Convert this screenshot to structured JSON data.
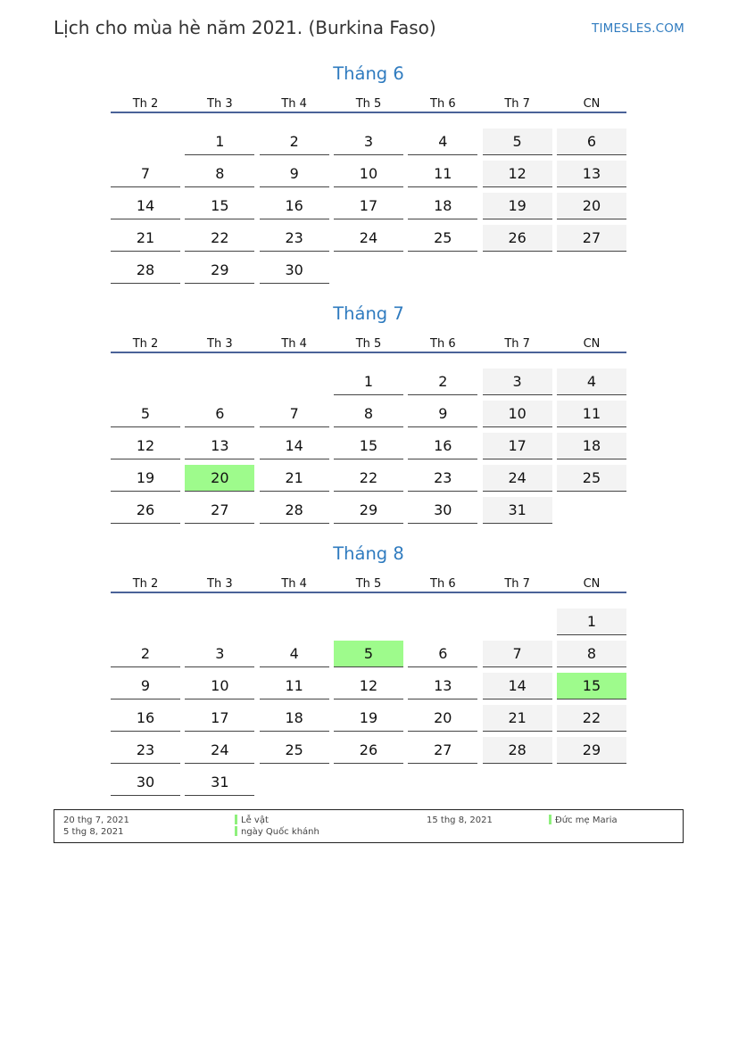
{
  "header": {
    "title": "Lịch cho mùa hè năm 2021. (Burkina Faso)",
    "brand": "TIMESLES.COM"
  },
  "weekdays": [
    "Th 2",
    "Th 3",
    "Th 4",
    "Th 5",
    "Th 6",
    "Th 7",
    "CN"
  ],
  "colors": {
    "accent": "#2f7bbf",
    "weekend": "#f3f3f3",
    "holiday": "#9efb8c",
    "rule": "#4a6298"
  },
  "months": [
    {
      "title": "Tháng 6",
      "weeks": [
        [
          null,
          1,
          2,
          3,
          4,
          5,
          6
        ],
        [
          7,
          8,
          9,
          10,
          11,
          12,
          13
        ],
        [
          14,
          15,
          16,
          17,
          18,
          19,
          20
        ],
        [
          21,
          22,
          23,
          24,
          25,
          26,
          27
        ],
        [
          28,
          29,
          30,
          null,
          null,
          null,
          null
        ]
      ],
      "holidays": []
    },
    {
      "title": "Tháng 7",
      "weeks": [
        [
          null,
          null,
          null,
          1,
          2,
          3,
          4
        ],
        [
          5,
          6,
          7,
          8,
          9,
          10,
          11
        ],
        [
          12,
          13,
          14,
          15,
          16,
          17,
          18
        ],
        [
          19,
          20,
          21,
          22,
          23,
          24,
          25
        ],
        [
          26,
          27,
          28,
          29,
          30,
          31,
          null
        ]
      ],
      "holidays": [
        20
      ]
    },
    {
      "title": "Tháng 8",
      "weeks": [
        [
          null,
          null,
          null,
          null,
          null,
          null,
          1
        ],
        [
          2,
          3,
          4,
          5,
          6,
          7,
          8
        ],
        [
          9,
          10,
          11,
          12,
          13,
          14,
          15
        ],
        [
          16,
          17,
          18,
          19,
          20,
          21,
          22
        ],
        [
          23,
          24,
          25,
          26,
          27,
          28,
          29
        ],
        [
          30,
          31,
          null,
          null,
          null,
          null,
          null
        ]
      ],
      "holidays": [
        5,
        15
      ]
    }
  ],
  "legend": [
    {
      "date": "20 thg 7, 2021",
      "name": "Lễ vật"
    },
    {
      "date": "5 thg 8, 2021",
      "name": "ngày Quốc khánh"
    },
    {
      "date": "15 thg 8, 2021",
      "name": "Đức mẹ Maria"
    }
  ]
}
